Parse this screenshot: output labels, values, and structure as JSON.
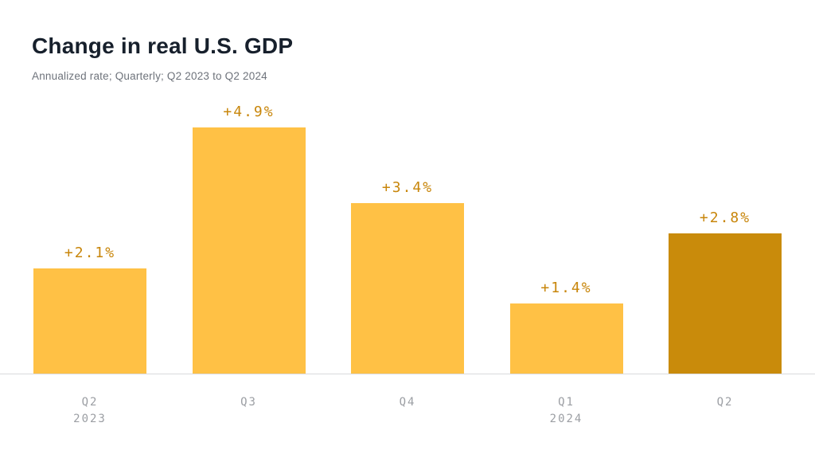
{
  "chart_data": {
    "type": "bar",
    "title": "Change in real U.S. GDP",
    "subtitle": "Annualized rate; Quarterly; Q2 2023 to Q2 2024",
    "categories": [
      "Q2",
      "Q3",
      "Q4",
      "Q1",
      "Q2"
    ],
    "category_sublabels": [
      "2023",
      "",
      "",
      "2024",
      ""
    ],
    "values": [
      2.1,
      4.9,
      3.4,
      1.4,
      2.8
    ],
    "value_labels": [
      "+2.1%",
      "+4.9%",
      "+3.4%",
      "+1.4%",
      "+2.8%"
    ],
    "bar_colors": [
      "#ffc145",
      "#ffc145",
      "#ffc145",
      "#ffc145",
      "#c98b0b"
    ],
    "value_label_color": "#c8860b",
    "tick_label_color": "#9b9ea3",
    "axis_line_color": "#d9dadc",
    "ylim": [
      0,
      5
    ],
    "grid": false,
    "legend": false
  }
}
